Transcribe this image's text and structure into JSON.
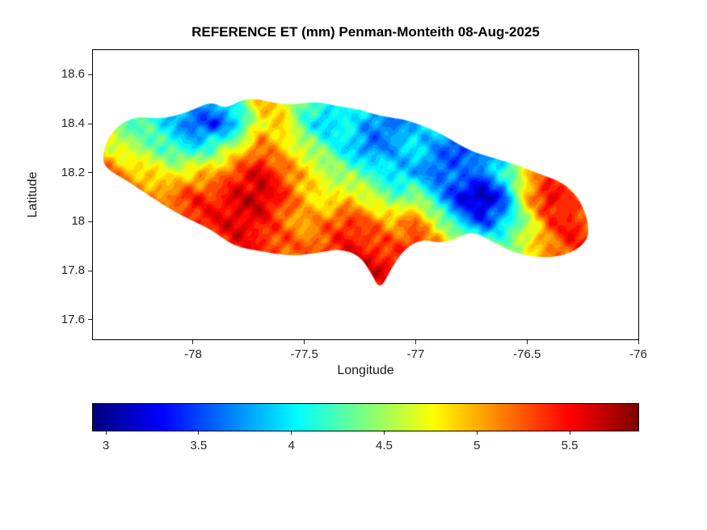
{
  "chart_data": {
    "type": "heatmap",
    "title": "REFERENCE ET (mm) Penman-Monteith 08-Aug-2025",
    "xlabel": "Longitude",
    "ylabel": "Latitude",
    "xlim": [
      -78.45,
      -76.0
    ],
    "ylim": [
      17.52,
      18.7
    ],
    "xticks": [
      -78,
      -77.5,
      -77,
      -76.5,
      -76
    ],
    "xtick_labels": [
      "-78",
      "-77.5",
      "-77",
      "-76.5",
      "-76"
    ],
    "yticks": [
      17.6,
      17.8,
      18,
      18.2,
      18.4,
      18.6
    ],
    "ytick_labels": [
      "17.6",
      "17.8",
      "18",
      "18.2",
      "18.4",
      "18.6"
    ],
    "colormap": "jet",
    "clim": [
      2.93,
      5.87
    ],
    "grid_on": false,
    "colorbar": {
      "orientation": "horizontal",
      "ticks": [
        3,
        3.5,
        4,
        4.5,
        5,
        5.5
      ],
      "tick_labels": [
        "3",
        "3.5",
        "4",
        "4.5",
        "5",
        "5.5"
      ]
    },
    "grid": {
      "lon": [
        -78.4,
        -78.3,
        -78.2,
        -78.1,
        -78.0,
        -77.9,
        -77.8,
        -77.7,
        -77.6,
        -77.5,
        -77.4,
        -77.3,
        -77.2,
        -77.1,
        -77.0,
        -76.9,
        -76.8,
        -76.7,
        -76.6,
        -76.5,
        -76.4,
        -76.3,
        -76.2
      ],
      "lat": [
        18.6,
        18.5,
        18.4,
        18.3,
        18.2,
        18.1,
        18.0,
        17.9,
        17.8,
        17.7
      ],
      "values": [
        [
          4.2,
          4.2,
          4.1,
          4.1,
          4.0,
          4.0,
          4.3,
          4.6,
          4.4,
          4.2,
          4.1,
          4.0,
          4.0,
          4.0,
          4.0,
          4.0,
          4.0,
          4.0,
          4.1,
          4.2,
          4.3,
          4.4,
          4.4
        ],
        [
          4.3,
          4.2,
          4.1,
          4.0,
          3.9,
          3.9,
          4.2,
          5.0,
          4.8,
          4.3,
          4.1,
          4.2,
          4.0,
          3.9,
          3.9,
          3.9,
          3.8,
          3.8,
          4.0,
          4.2,
          4.4,
          4.5,
          4.5
        ],
        [
          4.4,
          4.3,
          4.2,
          3.9,
          3.5,
          3.4,
          3.9,
          4.8,
          4.9,
          4.2,
          3.8,
          4.1,
          3.7,
          3.6,
          3.9,
          4.0,
          3.7,
          3.6,
          3.9,
          4.1,
          4.3,
          4.5,
          4.6
        ],
        [
          4.8,
          4.6,
          4.4,
          4.2,
          4.0,
          4.3,
          4.7,
          5.2,
          4.9,
          4.6,
          4.3,
          3.9,
          3.6,
          3.8,
          4.0,
          3.7,
          3.4,
          3.7,
          4.0,
          4.3,
          4.5,
          4.7,
          4.7
        ],
        [
          5.3,
          5.0,
          4.9,
          4.7,
          4.9,
          5.0,
          5.4,
          5.6,
          5.3,
          4.9,
          4.6,
          4.4,
          4.2,
          3.9,
          3.8,
          3.5,
          3.7,
          3.6,
          4.2,
          4.9,
          5.3,
          5.0,
          4.7
        ],
        [
          5.2,
          5.1,
          5.1,
          5.2,
          5.4,
          5.4,
          5.6,
          5.7,
          5.4,
          5.0,
          4.7,
          4.9,
          4.6,
          4.3,
          4.5,
          3.9,
          3.2,
          3.0,
          3.5,
          5.0,
          5.6,
          5.3,
          4.9
        ],
        [
          5.0,
          5.0,
          5.1,
          5.2,
          5.4,
          5.5,
          5.6,
          5.5,
          5.2,
          5.0,
          5.2,
          5.4,
          5.2,
          5.0,
          5.2,
          4.6,
          3.9,
          3.4,
          3.9,
          4.5,
          5.3,
          5.5,
          5.1
        ],
        [
          4.8,
          4.9,
          5.0,
          5.1,
          5.3,
          5.4,
          5.5,
          5.4,
          5.3,
          5.2,
          5.3,
          5.5,
          5.4,
          5.3,
          5.4,
          5.1,
          4.8,
          4.5,
          4.4,
          4.7,
          5.1,
          5.4,
          5.5
        ],
        [
          4.8,
          4.8,
          4.9,
          5.0,
          5.1,
          5.2,
          5.3,
          5.3,
          5.2,
          5.2,
          5.3,
          5.5,
          5.6,
          5.5,
          5.3,
          5.1,
          4.9,
          4.7,
          4.6,
          4.8,
          5.0,
          5.3,
          5.4
        ],
        [
          4.8,
          4.8,
          4.8,
          4.9,
          5.0,
          5.1,
          5.2,
          5.2,
          5.2,
          5.2,
          5.3,
          5.4,
          5.5,
          5.4,
          5.2,
          5.0,
          4.9,
          4.8,
          4.7,
          4.8,
          4.9,
          5.1,
          5.2
        ]
      ]
    },
    "region_outline": [
      [
        -78.41,
        18.25
      ],
      [
        -78.39,
        18.33
      ],
      [
        -78.34,
        18.39
      ],
      [
        -78.26,
        18.43
      ],
      [
        -78.17,
        18.42
      ],
      [
        -78.08,
        18.43
      ],
      [
        -77.99,
        18.46
      ],
      [
        -77.92,
        18.49
      ],
      [
        -77.85,
        18.46
      ],
      [
        -77.78,
        18.5
      ],
      [
        -77.7,
        18.5
      ],
      [
        -77.62,
        18.48
      ],
      [
        -77.53,
        18.48
      ],
      [
        -77.44,
        18.49
      ],
      [
        -77.35,
        18.47
      ],
      [
        -77.26,
        18.46
      ],
      [
        -77.16,
        18.43
      ],
      [
        -77.06,
        18.42
      ],
      [
        -76.96,
        18.39
      ],
      [
        -76.87,
        18.35
      ],
      [
        -76.76,
        18.29
      ],
      [
        -76.65,
        18.26
      ],
      [
        -76.54,
        18.23
      ],
      [
        -76.43,
        18.19
      ],
      [
        -76.34,
        18.16
      ],
      [
        -76.27,
        18.1
      ],
      [
        -76.23,
        18.02
      ],
      [
        -76.22,
        17.93
      ],
      [
        -76.3,
        17.87
      ],
      [
        -76.42,
        17.85
      ],
      [
        -76.55,
        17.87
      ],
      [
        -76.66,
        17.92
      ],
      [
        -76.74,
        17.96
      ],
      [
        -76.8,
        17.94
      ],
      [
        -76.88,
        17.91
      ],
      [
        -76.97,
        17.93
      ],
      [
        -77.05,
        17.89
      ],
      [
        -77.11,
        17.81
      ],
      [
        -77.16,
        17.72
      ],
      [
        -77.2,
        17.79
      ],
      [
        -77.25,
        17.86
      ],
      [
        -77.34,
        17.89
      ],
      [
        -77.45,
        17.87
      ],
      [
        -77.57,
        17.86
      ],
      [
        -77.7,
        17.88
      ],
      [
        -77.82,
        17.9
      ],
      [
        -77.92,
        17.97
      ],
      [
        -78.02,
        18.01
      ],
      [
        -78.12,
        18.06
      ],
      [
        -78.22,
        18.12
      ],
      [
        -78.32,
        18.18
      ],
      [
        -78.38,
        18.21
      ]
    ],
    "colors": {
      "background": "#ffffff",
      "axis": "#000000",
      "tick_text": "#262626"
    }
  }
}
